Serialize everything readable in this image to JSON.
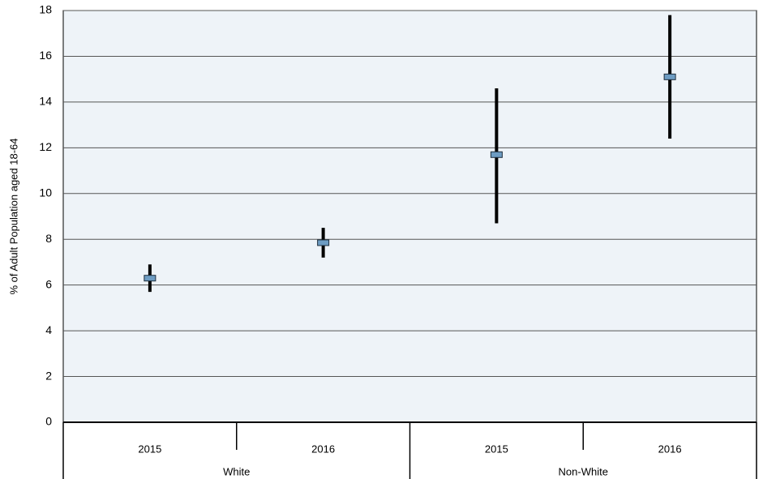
{
  "chart_data": {
    "type": "errorbar",
    "y_label": "% of Adult Population aged 18-64",
    "ylim": [
      0,
      18
    ],
    "yticks": [
      0,
      2,
      4,
      6,
      8,
      10,
      12,
      14,
      16,
      18
    ],
    "grid": true,
    "background": "#eef3f8",
    "marker_color": "#6d9cc3",
    "bar_color": "#000000",
    "groups": [
      {
        "name": "White",
        "categories": [
          "2015",
          "2016"
        ],
        "values": [
          6.3,
          7.85
        ],
        "low": [
          5.7,
          7.2
        ],
        "high": [
          6.9,
          8.5
        ]
      },
      {
        "name": "Non-White",
        "categories": [
          "2015",
          "2016"
        ],
        "values": [
          11.7,
          15.1
        ],
        "low": [
          8.7,
          12.4
        ],
        "high": [
          14.6,
          17.8
        ]
      }
    ]
  }
}
